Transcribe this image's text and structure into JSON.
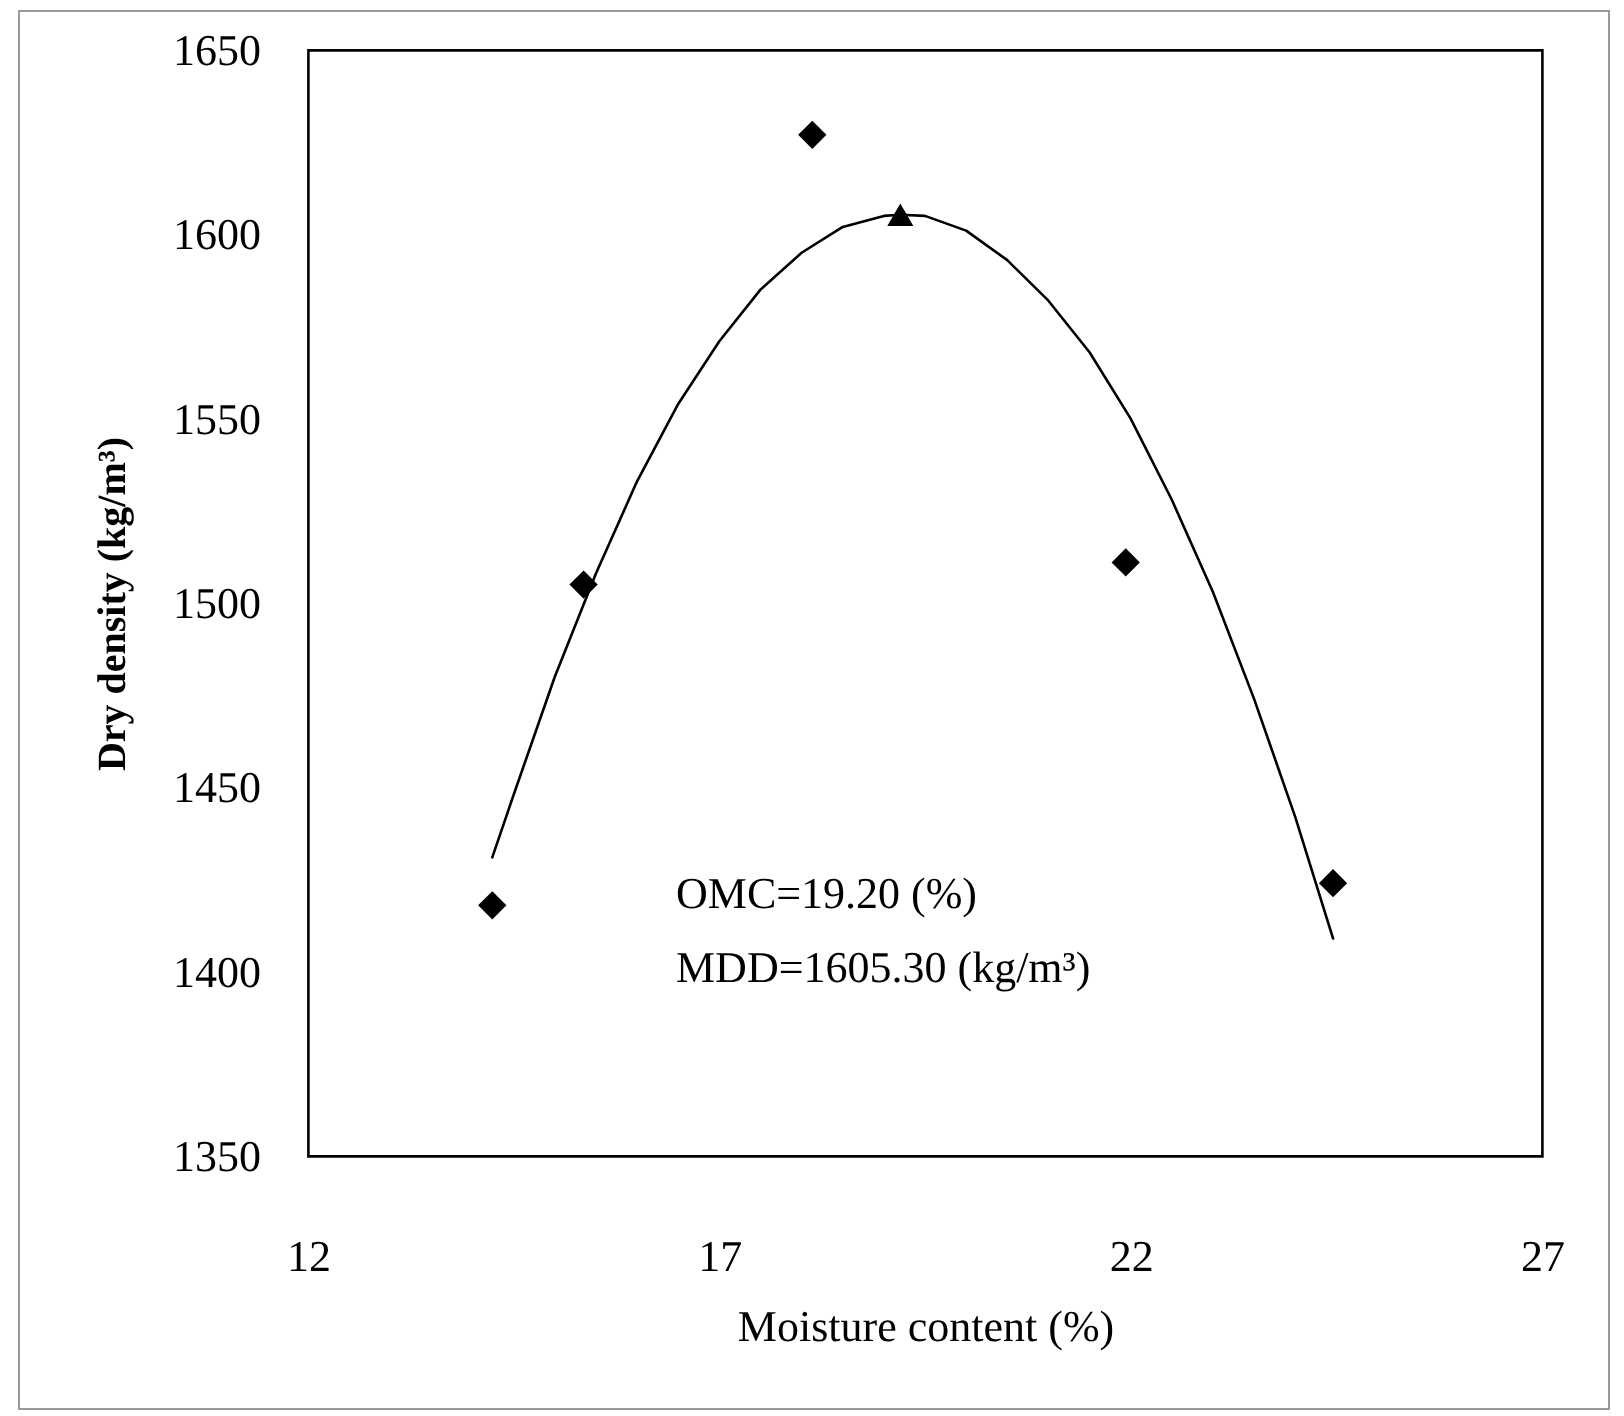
{
  "chart_data": {
    "type": "scatter",
    "xlabel": "Moisture content (%)",
    "ylabel": "Dry density (kg/m³)",
    "xlim": [
      12,
      27
    ],
    "xticks": [
      12,
      17,
      22,
      27
    ],
    "ylim": [
      1350,
      1650
    ],
    "yticks": [
      1350,
      1400,
      1450,
      1500,
      1550,
      1600,
      1650
    ],
    "grid": false,
    "series": [
      {
        "type": "line",
        "color": "#000000",
        "marker": "none",
        "x": [
          14.24,
          14.5,
          15,
          15.5,
          16,
          16.5,
          17,
          17.5,
          18,
          18.5,
          19,
          19.2,
          19.5,
          20,
          20.5,
          21,
          21.5,
          22,
          22.5,
          23,
          23.5,
          24,
          24.46
        ],
        "values": [
          1431,
          1448,
          1480,
          1508,
          1533,
          1554,
          1571,
          1585,
          1595,
          1602,
          1605,
          1605.3,
          1605,
          1601,
          1593,
          1582,
          1568,
          1550,
          1528,
          1503,
          1474,
          1442,
          1409
        ]
      },
      {
        "color": "#000000",
        "marker": "diamond",
        "x": [
          14.24,
          15.35,
          18.13,
          21.94,
          24.46
        ],
        "values": [
          1418,
          1505,
          1627,
          1511,
          1424
        ]
      },
      {
        "color": "#000000",
        "marker": "triangle",
        "x": [
          19.2
        ],
        "values": [
          1605.3
        ]
      }
    ],
    "annotations": [
      "OMC=19.20 (%)",
      "MDD=1605.30 (kg/m³)"
    ]
  }
}
